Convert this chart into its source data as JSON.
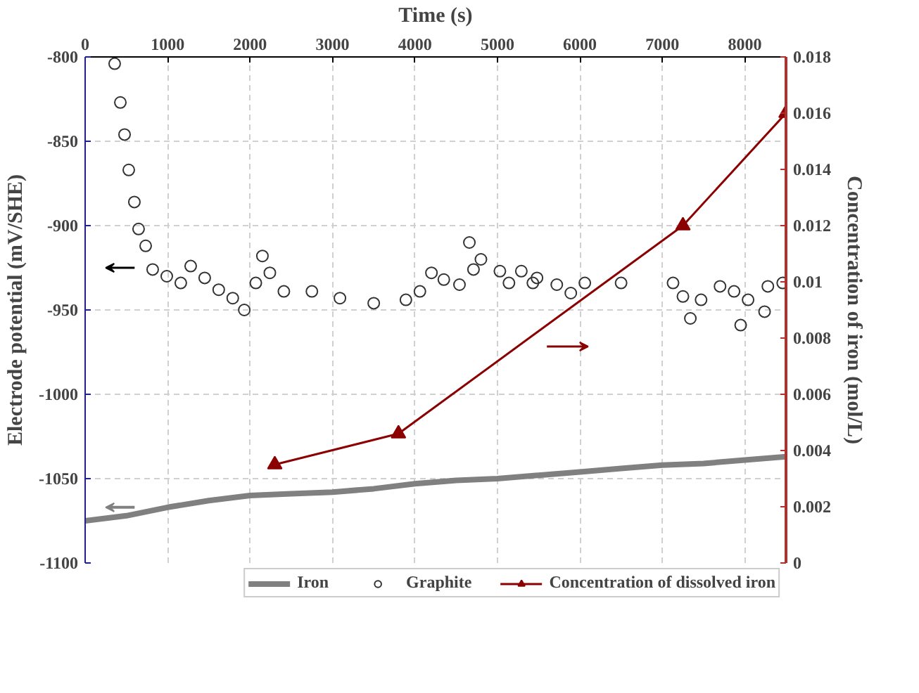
{
  "chart_data": {
    "type": "line",
    "xlabel": "Time (s)",
    "ylabel": "Electrode potential (mV/SHE)",
    "y2label": "Concentration of iron (mol/L)",
    "xlim": [
      0,
      8500
    ],
    "xticks": [
      0,
      1000,
      2000,
      3000,
      4000,
      5000,
      6000,
      7000,
      8000
    ],
    "ylim": [
      -1100,
      -800
    ],
    "yticks": [
      -1100,
      -1050,
      -1000,
      -950,
      -900,
      -850,
      -800
    ],
    "y2lim": [
      0,
      0.018
    ],
    "y2ticks": [
      0,
      0.002,
      0.004,
      0.006,
      0.008,
      0.01,
      0.012,
      0.014,
      0.016,
      0.018
    ],
    "grid": true,
    "legend": "bottom",
    "series": [
      {
        "name": "Iron",
        "marker": "none",
        "color": "#808080",
        "x": [
          0,
          500,
          1000,
          1500,
          2000,
          2500,
          3000,
          3500,
          4000,
          4500,
          5000,
          5500,
          6000,
          6500,
          7000,
          7500,
          8000,
          8500
        ],
        "values": [
          -1075,
          -1072,
          -1067,
          -1063,
          -1060,
          -1059,
          -1058,
          -1056,
          -1053,
          -1051,
          -1050,
          -1048,
          -1046,
          -1044,
          -1042,
          -1041,
          -1039,
          -1037
        ]
      },
      {
        "name": "Graphite",
        "type": "scatter",
        "marker": "circle",
        "color": "#333333",
        "x": [
          358,
          427,
          478,
          529,
          597,
          648,
          734,
          819,
          990,
          1160,
          1280,
          1450,
          1620,
          1790,
          1930,
          2070,
          2150,
          2240,
          2410,
          2750,
          3090,
          3500,
          3890,
          4060,
          4200,
          4350,
          4540,
          4660,
          4710,
          4800,
          5030,
          5140,
          5290,
          5430,
          5480,
          5720,
          5890,
          6060,
          6500,
          7130,
          7250,
          7340,
          7470,
          7700,
          7870,
          7950,
          8040,
          8240,
          8280,
          8460
        ],
        "values": [
          -804,
          -827,
          -846,
          -867,
          -886,
          -902,
          -912,
          -926,
          -930,
          -934,
          -924,
          -931,
          -938,
          -943,
          -950,
          -934,
          -918,
          -928,
          -939,
          -939,
          -943,
          -946,
          -944,
          -939,
          -928,
          -932,
          -935,
          -910,
          -926,
          -920,
          -927,
          -934,
          -927,
          -934,
          -931,
          -935,
          -940,
          -934,
          -934,
          -934,
          -942,
          -955,
          -944,
          -936,
          -939,
          -959,
          -944,
          -951,
          -936,
          -934
        ]
      },
      {
        "name": "Concentration of dissolved iron",
        "type": "line",
        "marker": "triangle",
        "axis": "y2",
        "color": "#8b0000",
        "x": [
          2300,
          3800,
          7250,
          8500
        ],
        "values": [
          0.0035,
          0.0046,
          0.012,
          0.016
        ]
      }
    ]
  }
}
